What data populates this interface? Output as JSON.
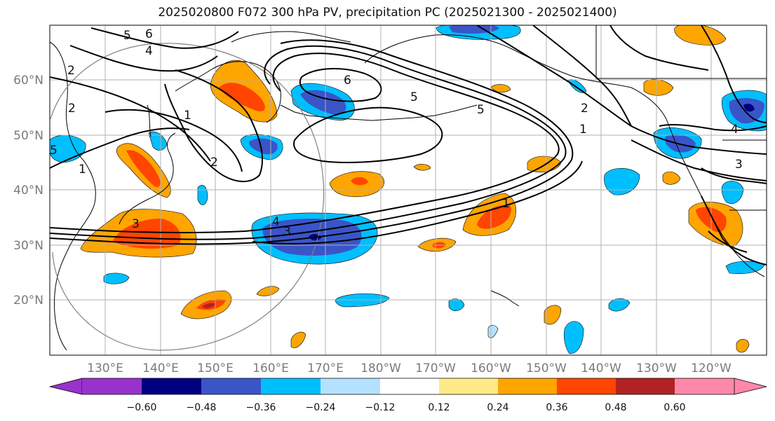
{
  "title": "2025020800 F072 300 hPa PV, precipitation PC (2025021300 - 2025021400)",
  "colors": {
    "ocean": "#ffffff",
    "grid": "#b0b0b0",
    "coast": "#000000",
    "contour": "#000000",
    "circle": "#808080",
    "scale": [
      "#9932cc",
      "#000080",
      "#3a55c8",
      "#00bfff",
      "#b3e1ff",
      "#ffffff",
      "#ffea88",
      "#ffa500",
      "#ff4500",
      "#b22222",
      "#ff88aa"
    ]
  },
  "axes": {
    "lat_labels": [
      "60°N",
      "50°N",
      "40°N",
      "30°N",
      "20°N"
    ],
    "lon_labels": [
      "130°E",
      "140°E",
      "150°E",
      "160°E",
      "170°E",
      "180°W",
      "170°W",
      "160°W",
      "150°W",
      "140°W",
      "130°W",
      "120°W"
    ]
  },
  "contour_labels": [
    {
      "text": "6"
    },
    {
      "text": "5"
    },
    {
      "text": "4"
    },
    {
      "text": "2"
    },
    {
      "text": "2"
    },
    {
      "text": "1"
    },
    {
      "text": "1"
    },
    {
      "text": "2"
    },
    {
      "text": "6"
    },
    {
      "text": "5"
    },
    {
      "text": "5"
    },
    {
      "text": "2"
    },
    {
      "text": "1"
    },
    {
      "text": "4"
    },
    {
      "text": "3"
    },
    {
      "text": "1"
    },
    {
      "text": "4"
    },
    {
      "text": "3"
    },
    {
      "text": "3"
    },
    {
      "text": "5"
    }
  ],
  "colorbar": {
    "ticks": [
      "−0.60",
      "−0.48",
      "−0.36",
      "−0.24",
      "−0.12",
      "0.12",
      "0.24",
      "0.36",
      "0.48",
      "0.60"
    ]
  },
  "chart_data": {
    "type": "map",
    "title": "2025020800 F072 300 hPa PV, precipitation PC (2025021300 - 2025021400)",
    "lat_range": [
      10,
      70
    ],
    "lon_labels": [
      "130°E",
      "140°E",
      "150°E",
      "160°E",
      "170°E",
      "180°W",
      "170°W",
      "160°W",
      "150°W",
      "140°W",
      "130°W",
      "120°W"
    ],
    "lat_labels": [
      "60°N",
      "50°N",
      "40°N",
      "30°N",
      "20°N"
    ],
    "colorbar_levels": [
      -0.6,
      -0.48,
      -0.36,
      -0.24,
      -0.12,
      0.12,
      0.24,
      0.36,
      0.48,
      0.6
    ],
    "pv_contour_values": [
      1,
      2,
      3,
      4,
      5,
      6
    ]
  }
}
